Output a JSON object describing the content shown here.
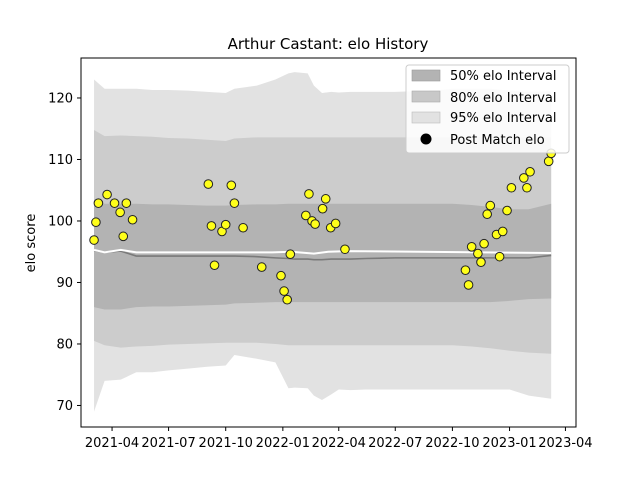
{
  "chart_data": {
    "type": "scatter",
    "title": "Arthur Castant: elo History",
    "xlabel": "",
    "ylabel": "elo score",
    "xlim": [
      "2021-02-10",
      "2023-04-18"
    ],
    "ylim": [
      66.5,
      126.5
    ],
    "x_ticks": [
      "2021-04",
      "2021-07",
      "2021-10",
      "2022-01",
      "2022-04",
      "2022-07",
      "2022-10",
      "2023-01",
      "2023-04"
    ],
    "y_ticks": [
      70,
      80,
      90,
      100,
      110,
      120
    ],
    "grid": false,
    "legend_position": "top-right",
    "legend": [
      {
        "label": "50% elo Interval",
        "color": "#b3b3b3"
      },
      {
        "label": "80% elo Interval",
        "color": "#c8c8c8"
      },
      {
        "label": "95% elo Interval",
        "color": "#e2e2e2"
      },
      {
        "label": "Post Match elo",
        "color": "#000000"
      }
    ],
    "bands": {
      "x": [
        "2021-03-03",
        "2021-03-20",
        "2021-04-15",
        "2021-05-10",
        "2021-06-05",
        "2021-07-01",
        "2021-08-01",
        "2021-09-01",
        "2021-10-01",
        "2021-10-15",
        "2021-11-20",
        "2021-12-20",
        "2022-01-10",
        "2022-01-20",
        "2022-02-10",
        "2022-02-20",
        "2022-03-05",
        "2022-03-20",
        "2022-04-01",
        "2022-04-20",
        "2022-05-15",
        "2022-07-01",
        "2022-09-01",
        "2022-10-01",
        "2022-11-01",
        "2022-12-01",
        "2023-01-01",
        "2023-02-01",
        "2023-03-09"
      ],
      "p95_upper": [
        123.0,
        121.5,
        121.5,
        121.5,
        121.3,
        121.3,
        121.2,
        121.0,
        120.8,
        121.5,
        122.0,
        123.0,
        124.0,
        124.2,
        124.0,
        122.0,
        120.8,
        121.0,
        120.9,
        121.0,
        121.0,
        121.0,
        121.2,
        121.5,
        121.5,
        121.5,
        121.2,
        121.0,
        121.1
      ],
      "p80_upper": [
        114.8,
        113.8,
        113.9,
        113.8,
        113.7,
        113.5,
        113.4,
        113.2,
        113.0,
        113.4,
        113.6,
        113.6,
        113.6,
        113.6,
        113.6,
        113.6,
        113.6,
        113.6,
        113.6,
        113.6,
        113.6,
        113.6,
        113.6,
        113.6,
        113.6,
        113.6,
        113.6,
        113.6,
        113.6
      ],
      "p50_upper": [
        103.5,
        102.8,
        102.8,
        102.8,
        102.7,
        102.7,
        102.6,
        102.5,
        102.5,
        102.6,
        102.7,
        102.7,
        102.8,
        102.8,
        102.8,
        102.8,
        102.8,
        102.8,
        102.8,
        102.8,
        102.8,
        102.8,
        102.8,
        102.8,
        102.6,
        102.3,
        101.9,
        101.9,
        102.8
      ],
      "median": [
        95.2,
        94.9,
        95.1,
        94.3,
        94.3,
        94.3,
        94.3,
        94.3,
        94.3,
        94.3,
        94.2,
        94.0,
        93.9,
        93.8,
        93.8,
        93.7,
        93.7,
        93.8,
        93.8,
        93.8,
        93.9,
        94.0,
        94.0,
        94.0,
        94.0,
        94.0,
        94.0,
        94.0,
        94.4
      ],
      "p50_lower": [
        86.0,
        85.6,
        85.6,
        86.0,
        86.1,
        86.1,
        86.2,
        86.3,
        86.4,
        86.6,
        86.7,
        86.8,
        86.8,
        86.8,
        86.8,
        86.8,
        86.8,
        86.8,
        86.8,
        86.8,
        86.8,
        86.8,
        86.8,
        86.8,
        86.8,
        86.8,
        87.0,
        87.3,
        87.4
      ],
      "p80_lower": [
        80.5,
        79.8,
        79.4,
        79.6,
        79.7,
        79.9,
        80.0,
        80.1,
        80.2,
        80.2,
        80.2,
        80.0,
        79.8,
        79.8,
        79.8,
        79.8,
        79.8,
        79.8,
        79.8,
        79.8,
        79.8,
        79.8,
        79.8,
        79.8,
        79.6,
        79.3,
        78.9,
        78.6,
        78.4
      ],
      "p95_lower": [
        69.0,
        74.0,
        74.2,
        75.4,
        75.4,
        75.7,
        76.0,
        76.3,
        76.5,
        78.2,
        77.6,
        77.0,
        72.8,
        72.9,
        72.8,
        71.6,
        70.9,
        71.8,
        72.6,
        72.5,
        72.6,
        72.6,
        72.6,
        72.6,
        72.6,
        72.6,
        72.6,
        71.6,
        71.1
      ]
    },
    "mean_line": {
      "x": [
        "2021-03-03",
        "2021-03-20",
        "2021-04-15",
        "2021-05-10",
        "2021-12-15",
        "2022-01-15",
        "2022-02-20",
        "2022-03-15",
        "2022-04-15",
        "2023-03-09"
      ],
      "y": [
        95.3,
        94.9,
        95.3,
        94.9,
        94.9,
        95.0,
        94.7,
        95.0,
        95.1,
        94.8
      ]
    },
    "series": [
      {
        "name": "Post Match elo",
        "x": [
          "2021-03-03",
          "2021-03-06",
          "2021-03-10",
          "2021-03-24",
          "2021-04-05",
          "2021-04-14",
          "2021-04-19",
          "2021-04-24",
          "2021-05-04",
          "2021-09-03",
          "2021-09-08",
          "2021-09-13",
          "2021-09-25",
          "2021-10-01",
          "2021-10-10",
          "2021-10-15",
          "2021-10-29",
          "2021-11-28",
          "2021-12-29",
          "2022-01-03",
          "2022-01-08",
          "2022-01-13",
          "2022-02-07",
          "2022-02-12",
          "2022-02-17",
          "2022-02-22",
          "2022-03-06",
          "2022-03-11",
          "2022-03-19",
          "2022-03-27",
          "2022-04-11",
          "2022-10-22",
          "2022-10-27",
          "2022-11-01",
          "2022-11-11",
          "2022-11-16",
          "2022-11-21",
          "2022-11-26",
          "2022-12-01",
          "2022-12-11",
          "2022-12-16",
          "2022-12-21",
          "2022-12-28",
          "2023-01-04",
          "2023-01-24",
          "2023-01-29",
          "2023-02-03",
          "2023-03-05",
          "2023-03-09"
        ],
        "y": [
          96.9,
          99.8,
          102.9,
          104.3,
          102.9,
          101.4,
          97.5,
          102.9,
          100.2,
          106.0,
          99.2,
          92.8,
          98.3,
          99.4,
          105.8,
          102.9,
          98.9,
          92.5,
          91.1,
          88.6,
          87.2,
          94.6,
          100.9,
          104.4,
          100.0,
          99.5,
          102.0,
          103.6,
          98.9,
          99.6,
          95.4,
          92.0,
          89.6,
          95.8,
          94.7,
          93.3,
          96.3,
          101.1,
          102.5,
          97.8,
          94.2,
          98.3,
          101.7,
          105.4,
          107.0,
          105.4,
          108.0,
          109.7,
          111.0
        ]
      }
    ]
  }
}
